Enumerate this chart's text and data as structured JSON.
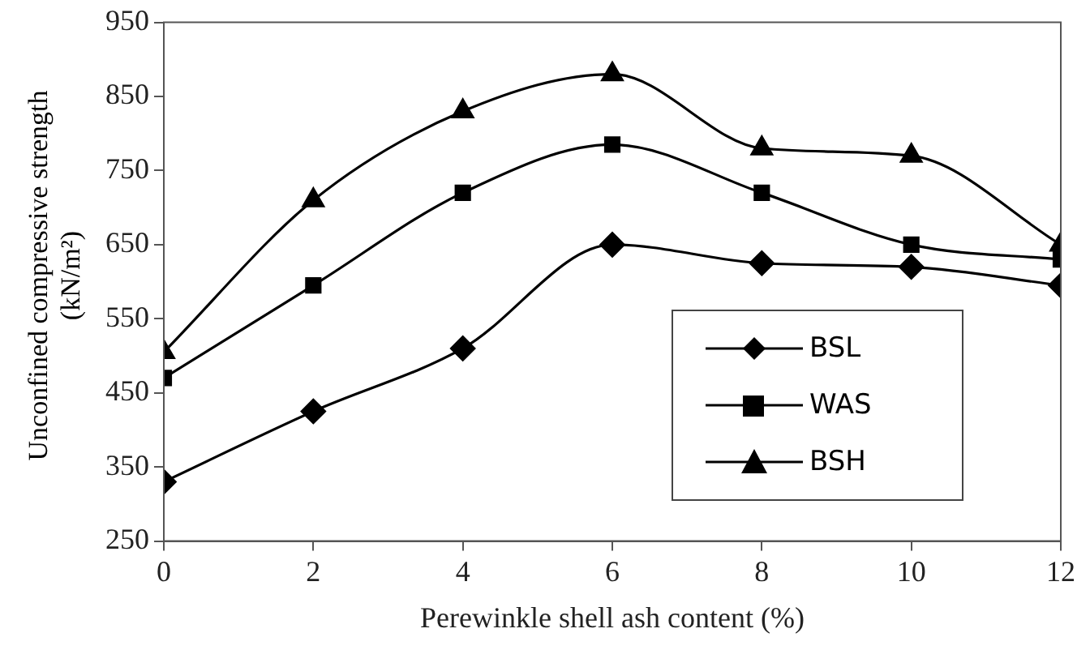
{
  "chart_data": {
    "type": "line",
    "xlabel": "Perewinkle shell ash content (%)",
    "ylabel": "Unconfined compressive strength (kN/m²)",
    "x": [
      0,
      2,
      4,
      6,
      8,
      10,
      12
    ],
    "xlim": [
      0,
      12
    ],
    "xticks": [
      0,
      2,
      4,
      6,
      8,
      10,
      12
    ],
    "ylim": [
      250,
      950
    ],
    "yticks": [
      250,
      350,
      450,
      550,
      650,
      750,
      850,
      950
    ],
    "grid": false,
    "legend": "right",
    "line_style": "solid",
    "series": [
      {
        "name": "BSL",
        "color": "#000000",
        "marker": "diamond",
        "values": [
          330,
          425,
          510,
          650,
          625,
          620,
          595
        ]
      },
      {
        "name": "WAS",
        "color": "#000000",
        "marker": "square",
        "values": [
          470,
          595,
          720,
          785,
          720,
          650,
          630
        ]
      },
      {
        "name": "BSH",
        "color": "#000000",
        "marker": "triangle",
        "values": [
          505,
          710,
          830,
          880,
          780,
          770,
          650
        ]
      }
    ]
  }
}
